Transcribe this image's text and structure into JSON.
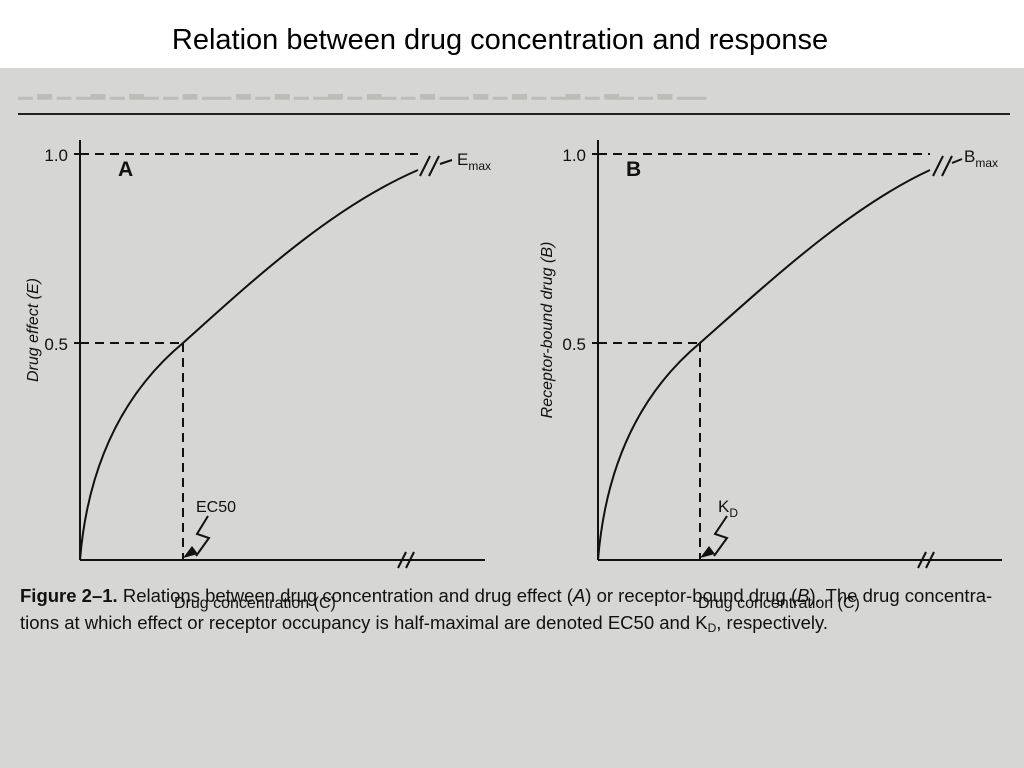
{
  "slide": {
    "title": "Relation between drug concentration and response"
  },
  "figure": {
    "panel_a": {
      "letter": "A",
      "ylabel": "Drug effect (E)",
      "xlabel": "Drug concentration (C)",
      "tick_top": "1.0",
      "tick_mid": "0.5",
      "max_label_main": "E",
      "max_label_sub": "max",
      "half_label": "EC50"
    },
    "panel_b": {
      "letter": "B",
      "ylabel": "Receptor-bound drug (B)",
      "xlabel": "Drug concentration (C)",
      "tick_top": "1.0",
      "tick_mid": "0.5",
      "max_label_main": "B",
      "max_label_sub": "max",
      "half_label_main": "K",
      "half_label_sub": "D"
    },
    "caption": {
      "label": "Figure 2–1.",
      "part1": "Relations between drug concentration and drug effect (",
      "a": "A",
      "part2": ") or receptor-bound drug (",
      "b": "B",
      "part3": "). The drug concentra-",
      "line2_part1": "tions at which effect or receptor occupancy is half-maximal are denoted EC50 and K",
      "line2_sub": "D",
      "line2_part2": ", respectively."
    }
  }
}
